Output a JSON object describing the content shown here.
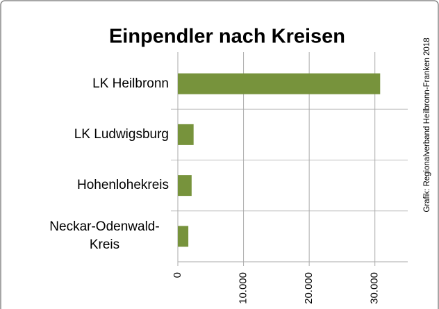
{
  "chart_data": {
    "type": "barh",
    "title": "Einpendler nach Kreisen",
    "source": "Grafik: Regionalverband Heilbronn-Franken 2018",
    "categories": [
      "LK Heilbronn",
      "LK Ludwigsburg",
      "Hohenlohekreis",
      "Neckar-Odenwald-Kreis"
    ],
    "values": [
      30800,
      2400,
      2100,
      1600
    ],
    "color": "#77933c",
    "xlim": [
      0,
      35000
    ],
    "xticks": [
      0,
      {
        "value": 10000,
        "label": "10.000"
      },
      {
        "value": 20000,
        "label": "20.000"
      },
      {
        "value": 30000,
        "label": "30.000"
      }
    ],
    "grid": true
  }
}
